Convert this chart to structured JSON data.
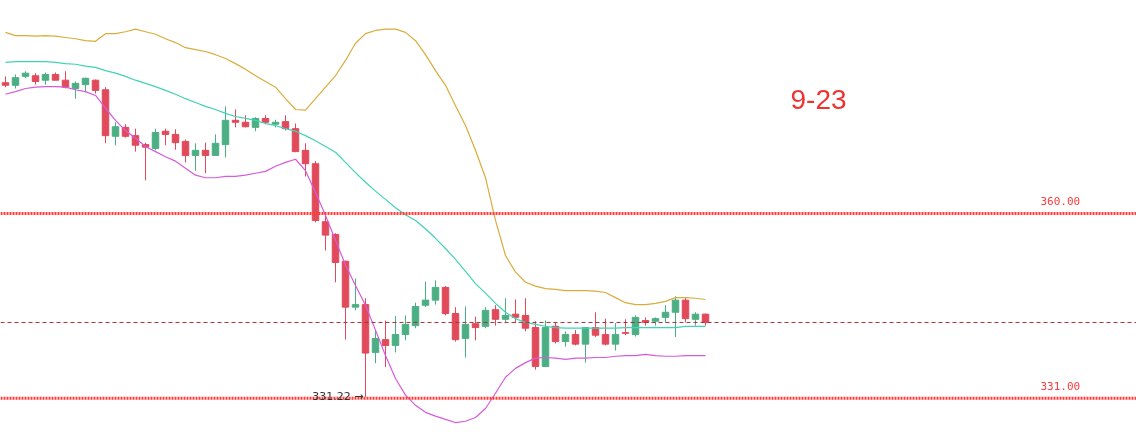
{
  "chart_data": {
    "type": "candlestick",
    "title": "9-23",
    "categories": [
      null,
      null,
      null,
      null,
      null,
      null,
      null,
      null,
      null,
      null,
      null,
      null,
      null,
      null,
      null,
      null,
      null,
      null,
      null,
      null,
      null,
      null,
      null,
      null,
      null,
      null,
      null,
      null,
      null,
      null,
      null,
      null,
      null,
      null,
      null,
      null,
      null,
      null,
      null,
      null,
      null,
      null,
      null,
      null,
      null,
      null,
      null,
      null,
      null,
      null,
      null,
      null,
      null,
      null,
      null,
      null,
      null,
      null,
      null,
      null,
      null,
      null,
      null,
      null,
      null,
      null,
      null,
      null,
      null,
      null,
      null
    ],
    "ohlc": [
      [
        380.5,
        381.5,
        379.8,
        380.1
      ],
      [
        380.1,
        381.8,
        379.6,
        381.3
      ],
      [
        381.5,
        382.3,
        381.2,
        382.0
      ],
      [
        381.6,
        382.0,
        380.2,
        380.7
      ],
      [
        380.9,
        382.1,
        380.2,
        381.8
      ],
      [
        381.8,
        382.1,
        380.9,
        380.9
      ],
      [
        380.9,
        382.3,
        379.6,
        379.8
      ],
      [
        379.6,
        380.7,
        378.0,
        380.4
      ],
      [
        380.2,
        381.3,
        379.0,
        381.2
      ],
      [
        380.9,
        381.0,
        378.8,
        379.3
      ],
      [
        379.4,
        379.8,
        371.0,
        372.2
      ],
      [
        372.1,
        374.3,
        370.7,
        373.6
      ],
      [
        373.5,
        374.0,
        371.9,
        372.1
      ],
      [
        372.2,
        373.3,
        369.7,
        370.7
      ],
      [
        370.8,
        371.1,
        365.2,
        370.4
      ],
      [
        370.2,
        373.3,
        369.9,
        372.7
      ],
      [
        372.9,
        373.3,
        370.7,
        372.4
      ],
      [
        372.4,
        373.2,
        370.0,
        371.1
      ],
      [
        371.3,
        371.6,
        368.0,
        369.1
      ],
      [
        369.1,
        371.0,
        366.7,
        369.9
      ],
      [
        369.9,
        371.1,
        366.3,
        369.1
      ],
      [
        369.1,
        372.4,
        369.1,
        371.0
      ],
      [
        370.8,
        376.8,
        368.8,
        374.6
      ],
      [
        374.6,
        376.3,
        373.5,
        374.3
      ],
      [
        374.3,
        375.4,
        373.5,
        373.6
      ],
      [
        373.5,
        375.1,
        372.9,
        374.9
      ],
      [
        374.9,
        375.4,
        374.0,
        374.3
      ],
      [
        374.0,
        374.7,
        373.5,
        374.3
      ],
      [
        374.4,
        375.4,
        373.0,
        373.3
      ],
      [
        373.3,
        374.1,
        369.6,
        369.7
      ],
      [
        369.9,
        371.0,
        365.8,
        367.8
      ],
      [
        367.8,
        368.2,
        358.6,
        358.9
      ],
      [
        358.7,
        359.7,
        354.2,
        356.6
      ],
      [
        356.7,
        356.9,
        349.2,
        352.3
      ],
      [
        352.5,
        352.6,
        340.2,
        345.3
      ],
      [
        345.3,
        349.8,
        344.8,
        345.7
      ],
      [
        345.7,
        346.7,
        331.22,
        338.1
      ],
      [
        338.2,
        341.7,
        336.5,
        340.4
      ],
      [
        340.2,
        343.2,
        335.9,
        339.3
      ],
      [
        339.3,
        343.9,
        338.2,
        341.0
      ],
      [
        341.0,
        344.0,
        340.1,
        342.6
      ],
      [
        342.4,
        346.0,
        342.0,
        345.4
      ],
      [
        345.6,
        349.3,
        345.3,
        346.4
      ],
      [
        346.4,
        349.5,
        345.7,
        348.4
      ],
      [
        348.4,
        348.6,
        344.0,
        344.3
      ],
      [
        344.3,
        345.3,
        339.9,
        340.2
      ],
      [
        340.4,
        345.4,
        337.4,
        342.6
      ],
      [
        342.7,
        343.8,
        340.1,
        342.1
      ],
      [
        342.3,
        345.3,
        342.0,
        344.8
      ],
      [
        344.9,
        345.6,
        342.4,
        343.4
      ],
      [
        343.4,
        346.7,
        342.9,
        344.0
      ],
      [
        344.2,
        346.5,
        342.8,
        343.7
      ],
      [
        344.0,
        346.7,
        341.5,
        342.0
      ],
      [
        342.1,
        343.1,
        335.5,
        336.0
      ],
      [
        336.0,
        343.2,
        335.9,
        342.1
      ],
      [
        342.3,
        342.9,
        339.6,
        339.9
      ],
      [
        339.9,
        341.5,
        339.1,
        341.0
      ],
      [
        341.0,
        341.7,
        339.3,
        339.5
      ],
      [
        339.5,
        342.1,
        336.6,
        342.1
      ],
      [
        342.1,
        344.5,
        340.6,
        340.9
      ],
      [
        341.0,
        343.5,
        339.3,
        339.5
      ],
      [
        339.5,
        342.8,
        338.5,
        341.0
      ],
      [
        341.3,
        343.4,
        340.9,
        341.2
      ],
      [
        341.0,
        344.0,
        340.7,
        343.7
      ],
      [
        343.2,
        343.7,
        342.4,
        342.9
      ],
      [
        343.1,
        343.7,
        342.4,
        343.5
      ],
      [
        343.7,
        345.6,
        342.9,
        344.5
      ],
      [
        344.5,
        347.0,
        340.6,
        346.4
      ],
      [
        346.4,
        346.8,
        342.9,
        343.5
      ],
      [
        343.4,
        344.5,
        342.4,
        344.2
      ],
      [
        344.2,
        344.3,
        342.4,
        342.9
      ]
    ],
    "colors": [
      "#e04a5a",
      "#4caf84",
      "#4caf84",
      "#e04a5a",
      "#4caf84",
      "#e04a5a",
      "#e04a5a",
      "#4caf84",
      "#4caf84",
      "#e04a5a",
      "#e04a5a",
      "#4caf84",
      "#e04a5a",
      "#e04a5a",
      "#e04a5a",
      "#4caf84",
      "#e04a5a",
      "#e04a5a",
      "#e04a5a",
      "#4caf84",
      "#e04a5a",
      "#4caf84",
      "#4caf84",
      "#e04a5a",
      "#e04a5a",
      "#4caf84",
      "#e04a5a",
      "#4caf84",
      "#e04a5a",
      "#e04a5a",
      "#e04a5a",
      "#e04a5a",
      "#e04a5a",
      "#e04a5a",
      "#e04a5a",
      "#4caf84",
      "#e04a5a",
      "#4caf84",
      "#e04a5a",
      "#4caf84",
      "#4caf84",
      "#4caf84",
      "#4caf84",
      "#4caf84",
      "#e04a5a",
      "#e04a5a",
      "#4caf84",
      "#e04a5a",
      "#4caf84",
      "#e04a5a",
      "#4caf84",
      "#e04a5a",
      "#e04a5a",
      "#e04a5a",
      "#4caf84",
      "#e04a5a",
      "#4caf84",
      "#e04a5a",
      "#4caf84",
      "#e04a5a",
      "#e04a5a",
      "#4caf84",
      "#e04a5a",
      "#4caf84",
      "#e04a5a",
      "#4caf84",
      "#4caf84",
      "#4caf84",
      "#e04a5a",
      "#4caf84",
      "#e04a5a"
    ],
    "series": [
      {
        "type": "line",
        "color": "#d9ad3c",
        "values": [
          388.4,
          387.9,
          387.9,
          387.8,
          387.9,
          387.8,
          387.6,
          387.4,
          387.1,
          387.0,
          388.2,
          388.2,
          388.5,
          388.9,
          388.5,
          388.1,
          387.4,
          386.8,
          386.0,
          385.7,
          385.4,
          384.9,
          384.3,
          383.5,
          382.6,
          381.6,
          380.7,
          379.8,
          378.0,
          376.3,
          376.2,
          378.0,
          379.8,
          381.6,
          384.0,
          386.7,
          388.2,
          388.7,
          388.9,
          388.9,
          388.4,
          387.1,
          384.9,
          382.4,
          380.1,
          376.9,
          373.8,
          369.9,
          365.6,
          358.9,
          353.4,
          350.8,
          349.2,
          348.6,
          348.2,
          348.1,
          347.9,
          347.9,
          347.9,
          347.8,
          347.6,
          346.8,
          346.0,
          345.7,
          345.7,
          345.9,
          346.2,
          346.8,
          346.8,
          346.7,
          346.5
        ]
      },
      {
        "type": "line",
        "color": "#41d3b4",
        "values": [
          383.7,
          383.8,
          383.8,
          383.8,
          383.8,
          383.7,
          383.5,
          383.4,
          383.1,
          382.9,
          382.4,
          382.0,
          381.5,
          380.9,
          380.4,
          379.9,
          379.3,
          378.7,
          378.0,
          377.4,
          376.8,
          376.3,
          375.7,
          375.2,
          374.9,
          374.6,
          374.1,
          373.8,
          373.3,
          372.9,
          372.2,
          371.4,
          370.5,
          369.6,
          368.0,
          366.4,
          364.9,
          363.5,
          362.2,
          360.9,
          359.8,
          358.9,
          357.6,
          356.1,
          354.5,
          352.8,
          350.9,
          349.0,
          347.5,
          345.9,
          344.5,
          343.5,
          342.9,
          342.6,
          342.3,
          342.1,
          342.0,
          342.0,
          342.0,
          342.0,
          342.0,
          342.0,
          342.1,
          342.1,
          342.1,
          342.1,
          342.1,
          342.1,
          342.3,
          342.3,
          342.3
        ]
      },
      {
        "type": "line",
        "color": "#d65bdb",
        "values": [
          378.7,
          379.1,
          379.6,
          379.8,
          379.9,
          379.9,
          379.8,
          379.4,
          379.1,
          378.5,
          376.5,
          374.6,
          373.0,
          371.8,
          370.5,
          369.7,
          368.9,
          368.2,
          367.1,
          366.0,
          365.6,
          365.6,
          365.8,
          365.8,
          366.0,
          366.3,
          366.6,
          367.4,
          368.0,
          368.5,
          366.7,
          363.3,
          359.7,
          355.8,
          351.9,
          348.7,
          345.6,
          341.7,
          337.7,
          334.1,
          331.5,
          329.9,
          328.8,
          328.2,
          327.7,
          327.2,
          327.4,
          328.0,
          329.4,
          331.8,
          334.3,
          335.7,
          336.6,
          337.3,
          337.4,
          337.3,
          337.1,
          337.3,
          337.3,
          337.4,
          337.4,
          337.6,
          337.7,
          337.7,
          337.9,
          337.7,
          337.6,
          337.6,
          337.7,
          337.7,
          337.7
        ]
      }
    ],
    "ylim": [
      323.6,
      393.4
    ],
    "ref_lines": [
      {
        "axis": "y",
        "value": 360.0,
        "label": "360.00",
        "color": "#ff3b3b",
        "line_style": "dotted"
      },
      {
        "axis": "y",
        "value": 331.0,
        "label": "331.00",
        "color": "#ff3b3b",
        "line_style": "dotted"
      },
      {
        "axis": "y",
        "value": 342.9,
        "label": null,
        "color": "#a83232",
        "line_style": "dashed"
      }
    ],
    "annotations": [
      {
        "text": "331.22 →",
        "y": 331.22
      }
    ],
    "tick_labels": false,
    "grid": false
  }
}
